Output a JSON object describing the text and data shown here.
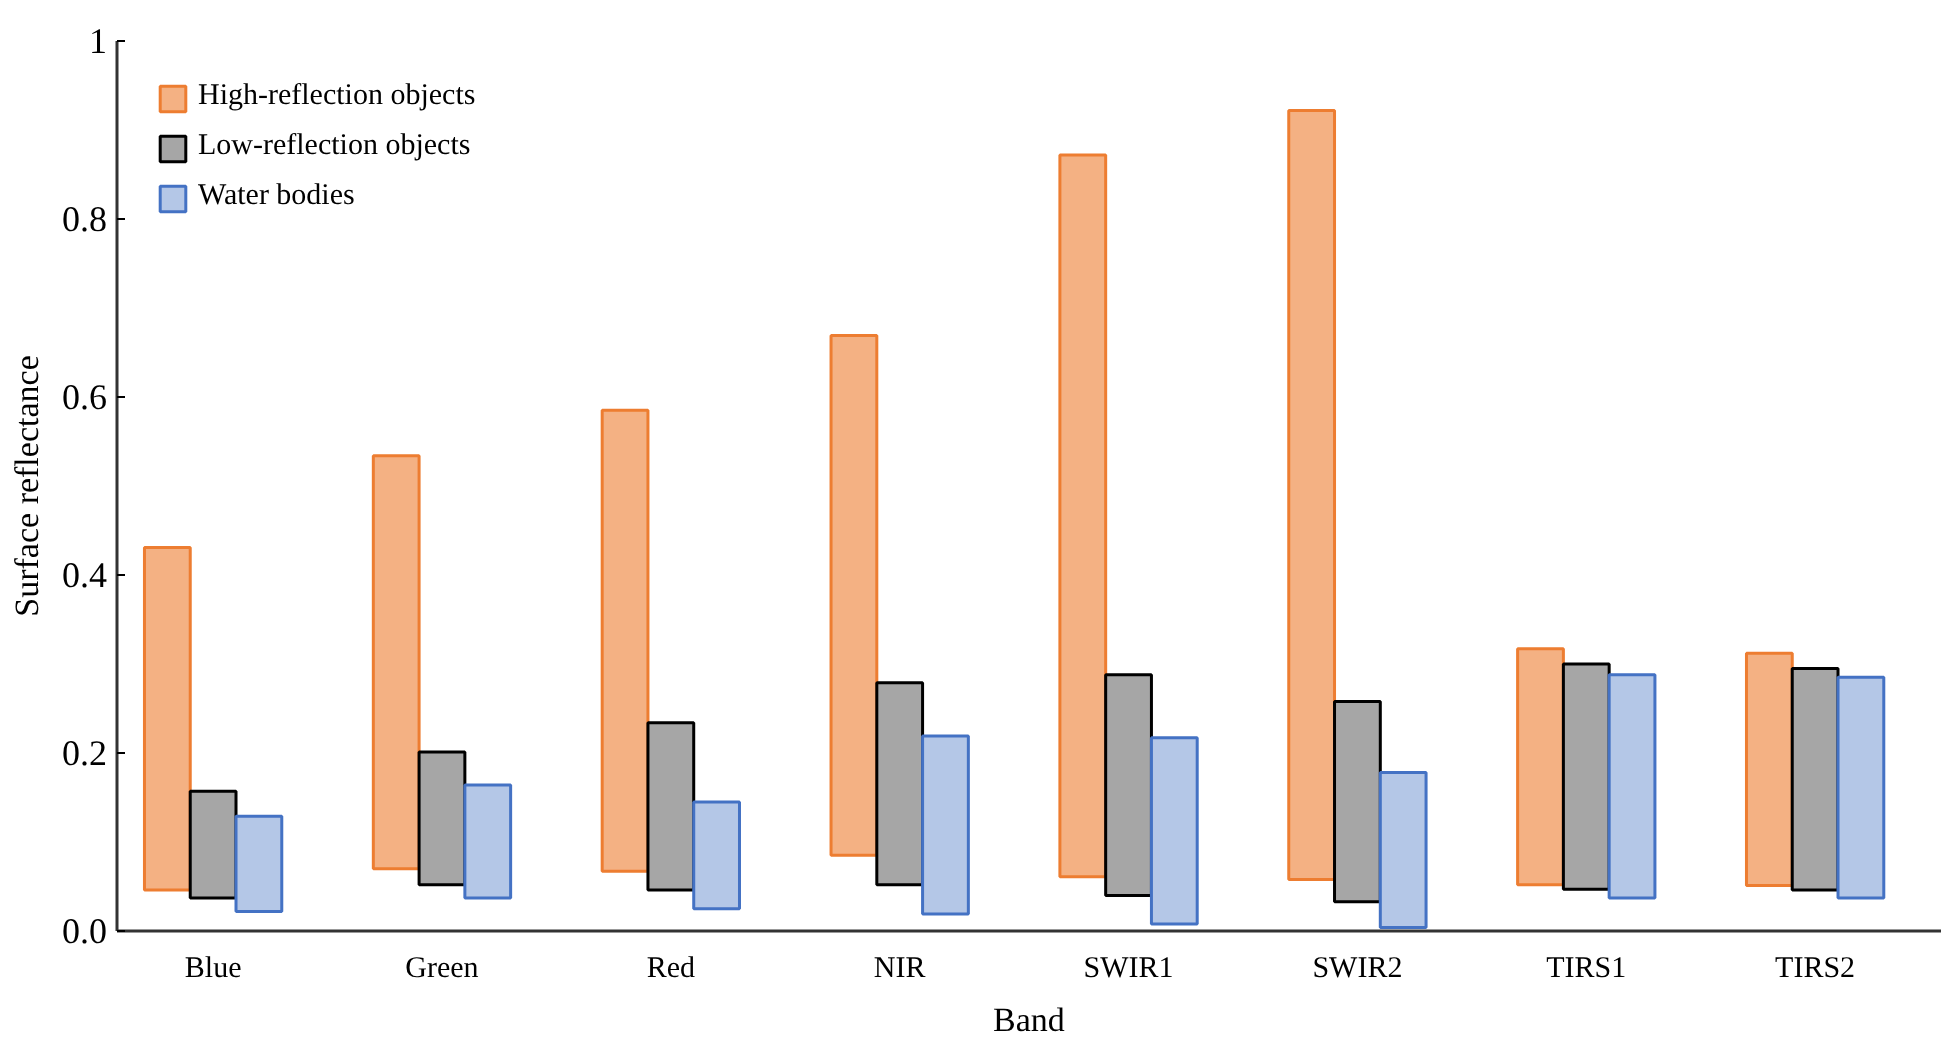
{
  "chart_data": {
    "type": "bar",
    "xlabel": "Band",
    "ylabel": "Surface reflectance",
    "categories": [
      "Blue",
      "Green",
      "Red",
      "NIR",
      "SWIR1",
      "SWIR2",
      "TIRS1",
      "TIRS2"
    ],
    "ylim": [
      0,
      1
    ],
    "yticks": [
      {
        "value": 0,
        "label": "0.0"
      },
      0.2,
      0.4,
      0.6,
      0.8,
      1
    ],
    "grid": false,
    "legend": "top left",
    "series": [
      {
        "name": "High-reflection objects",
        "color": "#f4b183",
        "base": [
          0.046,
          0.07,
          0.067,
          0.085,
          0.061,
          0.058,
          0.052,
          0.051
        ],
        "values": [
          0.385,
          0.464,
          0.518,
          0.584,
          0.811,
          0.864,
          0.265,
          0.261
        ]
      },
      {
        "name": "Low-reflection objects",
        "color": "#a6a6a6",
        "base": [
          0.037,
          0.052,
          0.046,
          0.052,
          0.04,
          0.033,
          0.047,
          0.046
        ],
        "values": [
          0.12,
          0.149,
          0.188,
          0.227,
          0.248,
          0.225,
          0.253,
          0.249
        ]
      },
      {
        "name": "Water bodies",
        "color": "#b4c7e7",
        "base": [
          0.022,
          0.037,
          0.025,
          0.019,
          0.008,
          0.004,
          0.037,
          0.037
        ],
        "values": [
          0.107,
          0.127,
          0.12,
          0.2,
          0.209,
          0.174,
          0.251,
          0.248
        ]
      }
    ]
  }
}
